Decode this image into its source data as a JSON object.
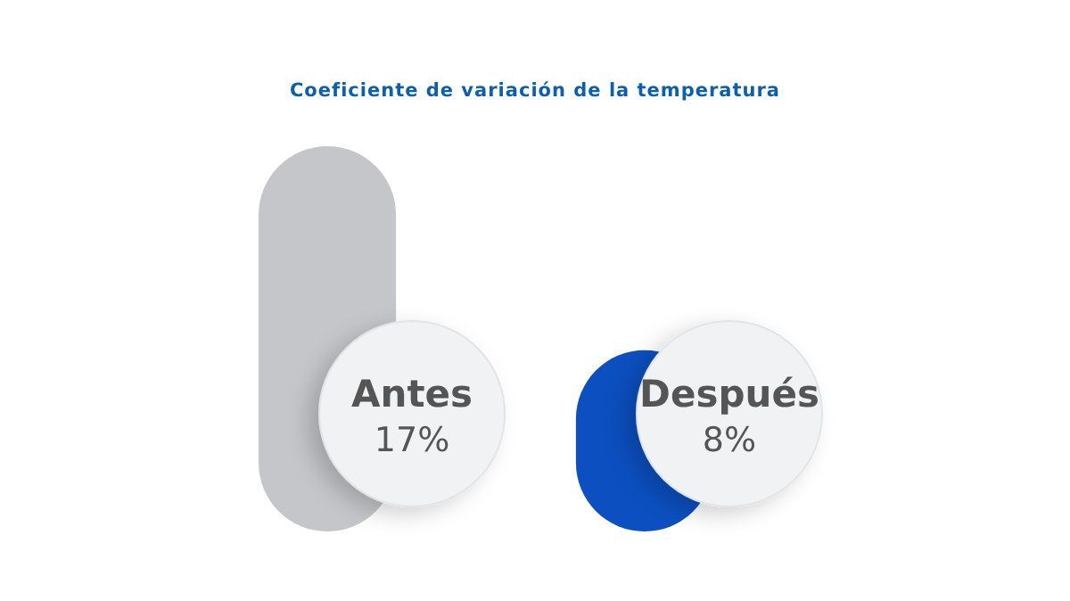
{
  "chart_data": {
    "type": "bar",
    "title": "Coeficiente de variación de la temperatura",
    "categories": [
      "Antes",
      "Después"
    ],
    "values": [
      17,
      8
    ],
    "colors": [
      "#c4c6c9",
      "#0b4fc0"
    ],
    "value_labels": [
      "17%",
      "8%"
    ]
  }
}
